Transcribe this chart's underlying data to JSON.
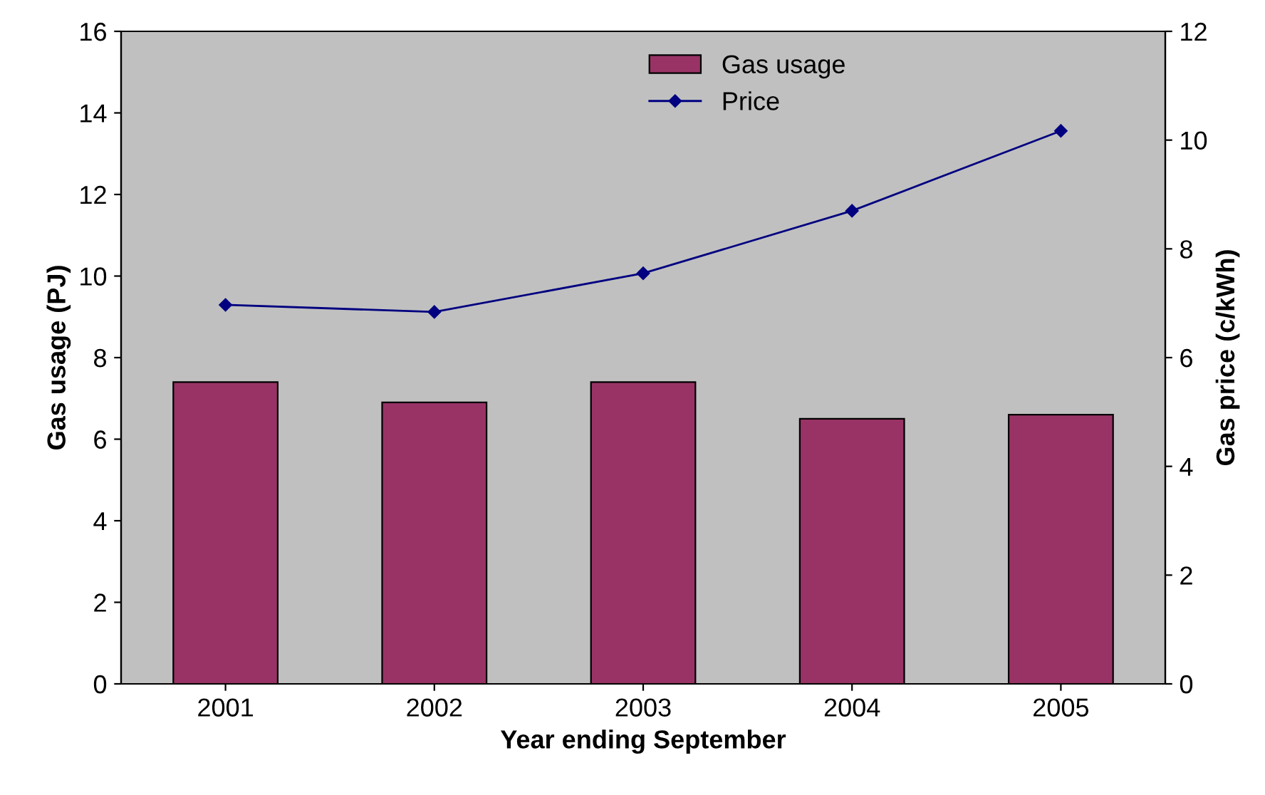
{
  "chart_data": {
    "type": "bar",
    "xlabel": "Year ending September",
    "ylabel": "Gas usage (PJ)",
    "y2label": "Gas price (c/kWh)",
    "categories": [
      "2001",
      "2002",
      "2003",
      "2004",
      "2005"
    ],
    "series": [
      {
        "name": "Gas usage",
        "color": "#993366",
        "values": [
          7.4,
          6.9,
          7.4,
          6.5,
          6.6
        ]
      },
      {
        "name": "Price",
        "type": "line",
        "axis": "y2",
        "color": "#000080",
        "marker": "diamond",
        "values": [
          6.97,
          6.84,
          7.55,
          8.7,
          10.17
        ]
      }
    ],
    "ylim": [
      0,
      16
    ],
    "yticks": [
      0,
      2,
      4,
      6,
      8,
      10,
      12,
      14,
      16
    ],
    "y2lim": [
      0,
      12
    ],
    "y2ticks": [
      0,
      2,
      4,
      6,
      8,
      10,
      12
    ],
    "grid": false,
    "legend": "top"
  }
}
